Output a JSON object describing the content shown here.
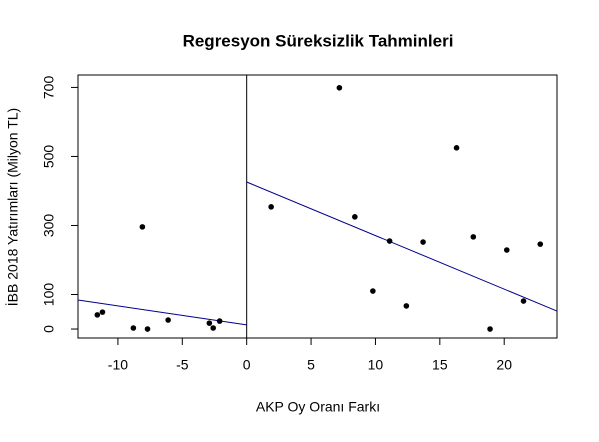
{
  "chart_data": {
    "type": "scatter",
    "title": "Regresyon Süreksizlik Tahminleri",
    "x_label": "AKP Oy Oranı Farkı",
    "y_label": "İBB 2018 Yatırımları (Milyon TL)",
    "series": [
      {
        "color": "#000000",
        "x": [
          -11.6,
          -11.2,
          -8.8,
          -8.1,
          -7.7,
          -6.1,
          -2.9,
          -2.6,
          -2.1,
          1.9,
          7.2,
          8.4,
          9.8,
          11.1,
          12.4,
          13.7,
          16.3,
          17.6,
          18.9,
          20.2,
          21.5,
          22.8
        ],
        "values": [
          41,
          49,
          3,
          296,
          0,
          26,
          17,
          3,
          23,
          354,
          699,
          325,
          110,
          255,
          67,
          252,
          525,
          267,
          0,
          229,
          81,
          246
        ]
      }
    ],
    "fit_lines": [
      {
        "color": "#00008b",
        "x": [
          -13.1,
          0
        ],
        "values": [
          84,
          12
        ]
      },
      {
        "color": "#00008b",
        "x": [
          0,
          24.1
        ],
        "values": [
          426,
          52
        ]
      }
    ],
    "vline": 0,
    "xlim": [
      -13.1,
      24.1
    ],
    "ylim": [
      -26,
      736
    ],
    "xticks": [
      -10,
      -5,
      0,
      5,
      10,
      15,
      20
    ],
    "yticks": [
      0,
      100,
      300,
      500,
      700
    ]
  }
}
